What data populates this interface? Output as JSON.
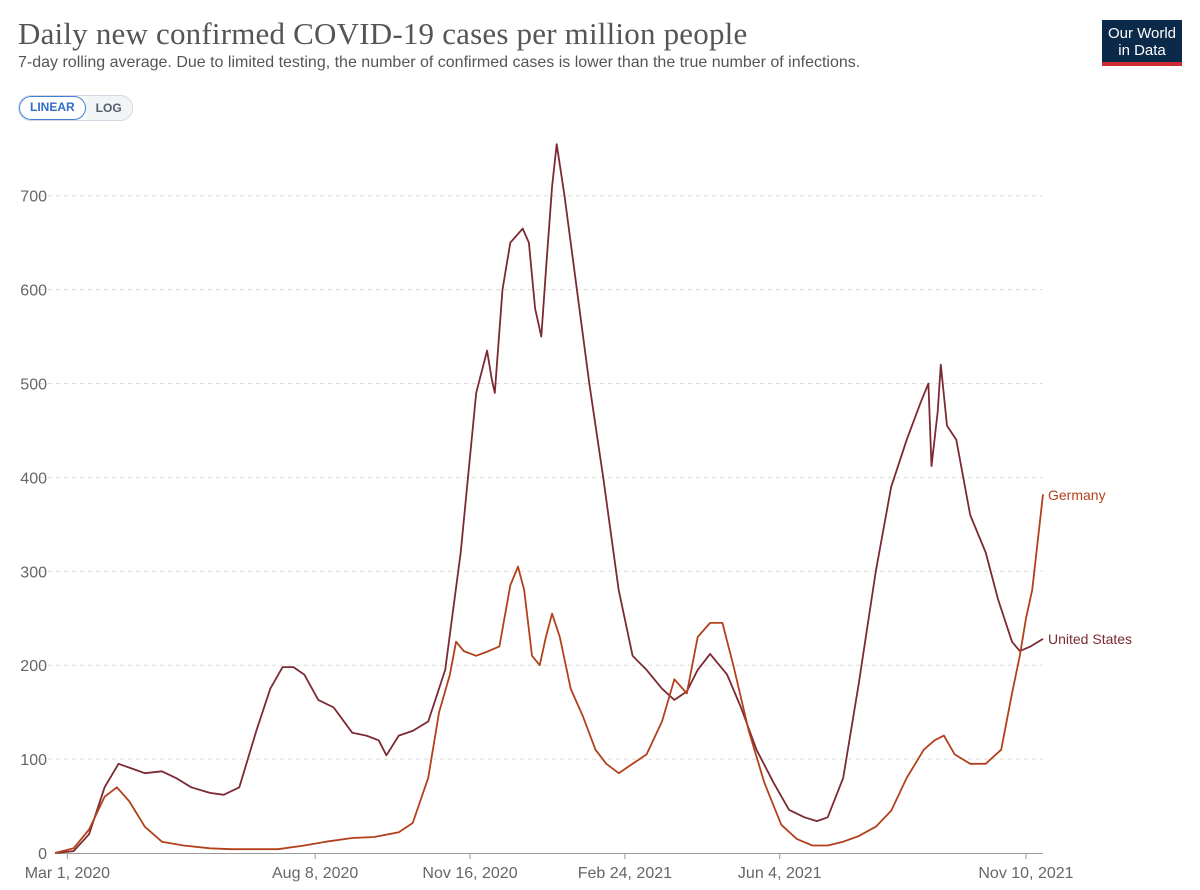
{
  "header": {
    "title": "Daily new confirmed COVID-19 cases per million people",
    "subtitle": "7-day rolling average. Due to limited testing, the number of confirmed cases is lower than the true number of infections.",
    "logo_line1": "Our World",
    "logo_line2": "in Data"
  },
  "scale_toggle": {
    "linear_label": "LINEAR",
    "log_label": "LOG",
    "selected": "LINEAR"
  },
  "colors": {
    "united_states": "#7b2a33",
    "germany": "#b3401c",
    "grid": "#dddddd",
    "axis": "#666666"
  },
  "chart_data": {
    "type": "line",
    "title": "Daily new confirmed COVID-19 cases per million people",
    "ylim": [
      0,
      760
    ],
    "yticks": [
      0,
      100,
      200,
      300,
      400,
      500,
      600,
      700
    ],
    "grid": "horizontal dashed",
    "x_domain": [
      "2020-02-22",
      "2021-11-21"
    ],
    "xtick_labels": [
      {
        "date": "2020-03-01",
        "label": "Mar 1, 2020"
      },
      {
        "date": "2020-08-08",
        "label": "Aug 8, 2020"
      },
      {
        "date": "2020-11-16",
        "label": "Nov 16, 2020"
      },
      {
        "date": "2021-02-24",
        "label": "Feb 24, 2021"
      },
      {
        "date": "2021-06-04",
        "label": "Jun 4, 2021"
      },
      {
        "date": "2021-11-10",
        "label": "Nov 10, 2021"
      }
    ],
    "series": [
      {
        "name": "United States",
        "color": "#7b2a33",
        "points": [
          [
            "2020-02-22",
            0
          ],
          [
            "2020-03-05",
            2
          ],
          [
            "2020-03-15",
            20
          ],
          [
            "2020-03-25",
            70
          ],
          [
            "2020-04-03",
            95
          ],
          [
            "2020-04-10",
            91
          ],
          [
            "2020-04-20",
            85
          ],
          [
            "2020-05-01",
            87
          ],
          [
            "2020-05-10",
            80
          ],
          [
            "2020-05-20",
            70
          ],
          [
            "2020-06-01",
            64
          ],
          [
            "2020-06-10",
            62
          ],
          [
            "2020-06-20",
            70
          ],
          [
            "2020-07-01",
            130
          ],
          [
            "2020-07-10",
            175
          ],
          [
            "2020-07-18",
            198
          ],
          [
            "2020-07-25",
            198
          ],
          [
            "2020-08-01",
            190
          ],
          [
            "2020-08-10",
            163
          ],
          [
            "2020-08-20",
            155
          ],
          [
            "2020-09-01",
            128
          ],
          [
            "2020-09-10",
            125
          ],
          [
            "2020-09-18",
            120
          ],
          [
            "2020-09-23",
            104
          ],
          [
            "2020-10-01",
            125
          ],
          [
            "2020-10-10",
            130
          ],
          [
            "2020-10-20",
            140
          ],
          [
            "2020-10-31",
            195
          ],
          [
            "2020-11-10",
            320
          ],
          [
            "2020-11-20",
            490
          ],
          [
            "2020-11-27",
            535
          ],
          [
            "2020-11-30",
            505
          ],
          [
            "2020-12-02",
            490
          ],
          [
            "2020-12-07",
            600
          ],
          [
            "2020-12-12",
            650
          ],
          [
            "2020-12-20",
            665
          ],
          [
            "2020-12-24",
            650
          ],
          [
            "2020-12-28",
            580
          ],
          [
            "2021-01-01",
            550
          ],
          [
            "2021-01-04",
            620
          ],
          [
            "2021-01-08",
            710
          ],
          [
            "2021-01-11",
            755
          ],
          [
            "2021-01-16",
            700
          ],
          [
            "2021-01-24",
            600
          ],
          [
            "2021-02-01",
            500
          ],
          [
            "2021-02-10",
            400
          ],
          [
            "2021-02-20",
            280
          ],
          [
            "2021-03-01",
            210
          ],
          [
            "2021-03-10",
            195
          ],
          [
            "2021-03-20",
            175
          ],
          [
            "2021-03-28",
            163
          ],
          [
            "2021-04-05",
            172
          ],
          [
            "2021-04-12",
            195
          ],
          [
            "2021-04-20",
            212
          ],
          [
            "2021-05-01",
            190
          ],
          [
            "2021-05-10",
            155
          ],
          [
            "2021-05-20",
            110
          ],
          [
            "2021-05-31",
            75
          ],
          [
            "2021-06-10",
            46
          ],
          [
            "2021-06-20",
            38
          ],
          [
            "2021-06-28",
            34
          ],
          [
            "2021-07-05",
            38
          ],
          [
            "2021-07-15",
            80
          ],
          [
            "2021-07-25",
            180
          ],
          [
            "2021-08-05",
            300
          ],
          [
            "2021-08-15",
            390
          ],
          [
            "2021-08-25",
            440
          ],
          [
            "2021-09-03",
            480
          ],
          [
            "2021-09-08",
            500
          ],
          [
            "2021-09-10",
            412
          ],
          [
            "2021-09-14",
            470
          ],
          [
            "2021-09-16",
            520
          ],
          [
            "2021-09-20",
            455
          ],
          [
            "2021-09-26",
            440
          ],
          [
            "2021-10-05",
            360
          ],
          [
            "2021-10-15",
            320
          ],
          [
            "2021-10-23",
            270
          ],
          [
            "2021-11-01",
            225
          ],
          [
            "2021-11-06",
            215
          ],
          [
            "2021-11-13",
            220
          ],
          [
            "2021-11-21",
            228
          ]
        ]
      },
      {
        "name": "Germany",
        "color": "#b3401c",
        "points": [
          [
            "2020-02-22",
            0
          ],
          [
            "2020-03-05",
            5
          ],
          [
            "2020-03-15",
            25
          ],
          [
            "2020-03-25",
            60
          ],
          [
            "2020-04-02",
            70
          ],
          [
            "2020-04-10",
            55
          ],
          [
            "2020-04-20",
            28
          ],
          [
            "2020-05-01",
            12
          ],
          [
            "2020-05-15",
            8
          ],
          [
            "2020-06-01",
            5
          ],
          [
            "2020-06-15",
            4
          ],
          [
            "2020-07-01",
            4
          ],
          [
            "2020-07-15",
            4
          ],
          [
            "2020-08-01",
            8
          ],
          [
            "2020-08-15",
            12
          ],
          [
            "2020-09-01",
            16
          ],
          [
            "2020-09-15",
            17
          ],
          [
            "2020-10-01",
            22
          ],
          [
            "2020-10-10",
            32
          ],
          [
            "2020-10-20",
            80
          ],
          [
            "2020-10-27",
            150
          ],
          [
            "2020-11-03",
            190
          ],
          [
            "2020-11-07",
            225
          ],
          [
            "2020-11-12",
            215
          ],
          [
            "2020-11-20",
            210
          ],
          [
            "2020-11-28",
            215
          ],
          [
            "2020-12-05",
            220
          ],
          [
            "2020-12-12",
            285
          ],
          [
            "2020-12-17",
            305
          ],
          [
            "2020-12-21",
            280
          ],
          [
            "2020-12-26",
            210
          ],
          [
            "2020-12-31",
            200
          ],
          [
            "2021-01-04",
            230
          ],
          [
            "2021-01-08",
            255
          ],
          [
            "2021-01-13",
            230
          ],
          [
            "2021-01-20",
            175
          ],
          [
            "2021-01-28",
            145
          ],
          [
            "2021-02-05",
            110
          ],
          [
            "2021-02-12",
            95
          ],
          [
            "2021-02-20",
            85
          ],
          [
            "2021-03-01",
            95
          ],
          [
            "2021-03-10",
            105
          ],
          [
            "2021-03-20",
            140
          ],
          [
            "2021-03-28",
            185
          ],
          [
            "2021-04-05",
            170
          ],
          [
            "2021-04-12",
            230
          ],
          [
            "2021-04-20",
            245
          ],
          [
            "2021-04-28",
            245
          ],
          [
            "2021-05-05",
            200
          ],
          [
            "2021-05-15",
            130
          ],
          [
            "2021-05-25",
            75
          ],
          [
            "2021-06-05",
            30
          ],
          [
            "2021-06-15",
            15
          ],
          [
            "2021-06-25",
            8
          ],
          [
            "2021-07-05",
            8
          ],
          [
            "2021-07-15",
            12
          ],
          [
            "2021-07-25",
            18
          ],
          [
            "2021-08-05",
            28
          ],
          [
            "2021-08-15",
            45
          ],
          [
            "2021-08-25",
            80
          ],
          [
            "2021-09-05",
            110
          ],
          [
            "2021-09-12",
            120
          ],
          [
            "2021-09-18",
            125
          ],
          [
            "2021-09-25",
            105
          ],
          [
            "2021-10-05",
            95
          ],
          [
            "2021-10-15",
            95
          ],
          [
            "2021-10-25",
            110
          ],
          [
            "2021-11-01",
            170
          ],
          [
            "2021-11-06",
            210
          ],
          [
            "2021-11-10",
            250
          ],
          [
            "2021-11-14",
            280
          ],
          [
            "2021-11-21",
            382
          ]
        ]
      }
    ]
  }
}
